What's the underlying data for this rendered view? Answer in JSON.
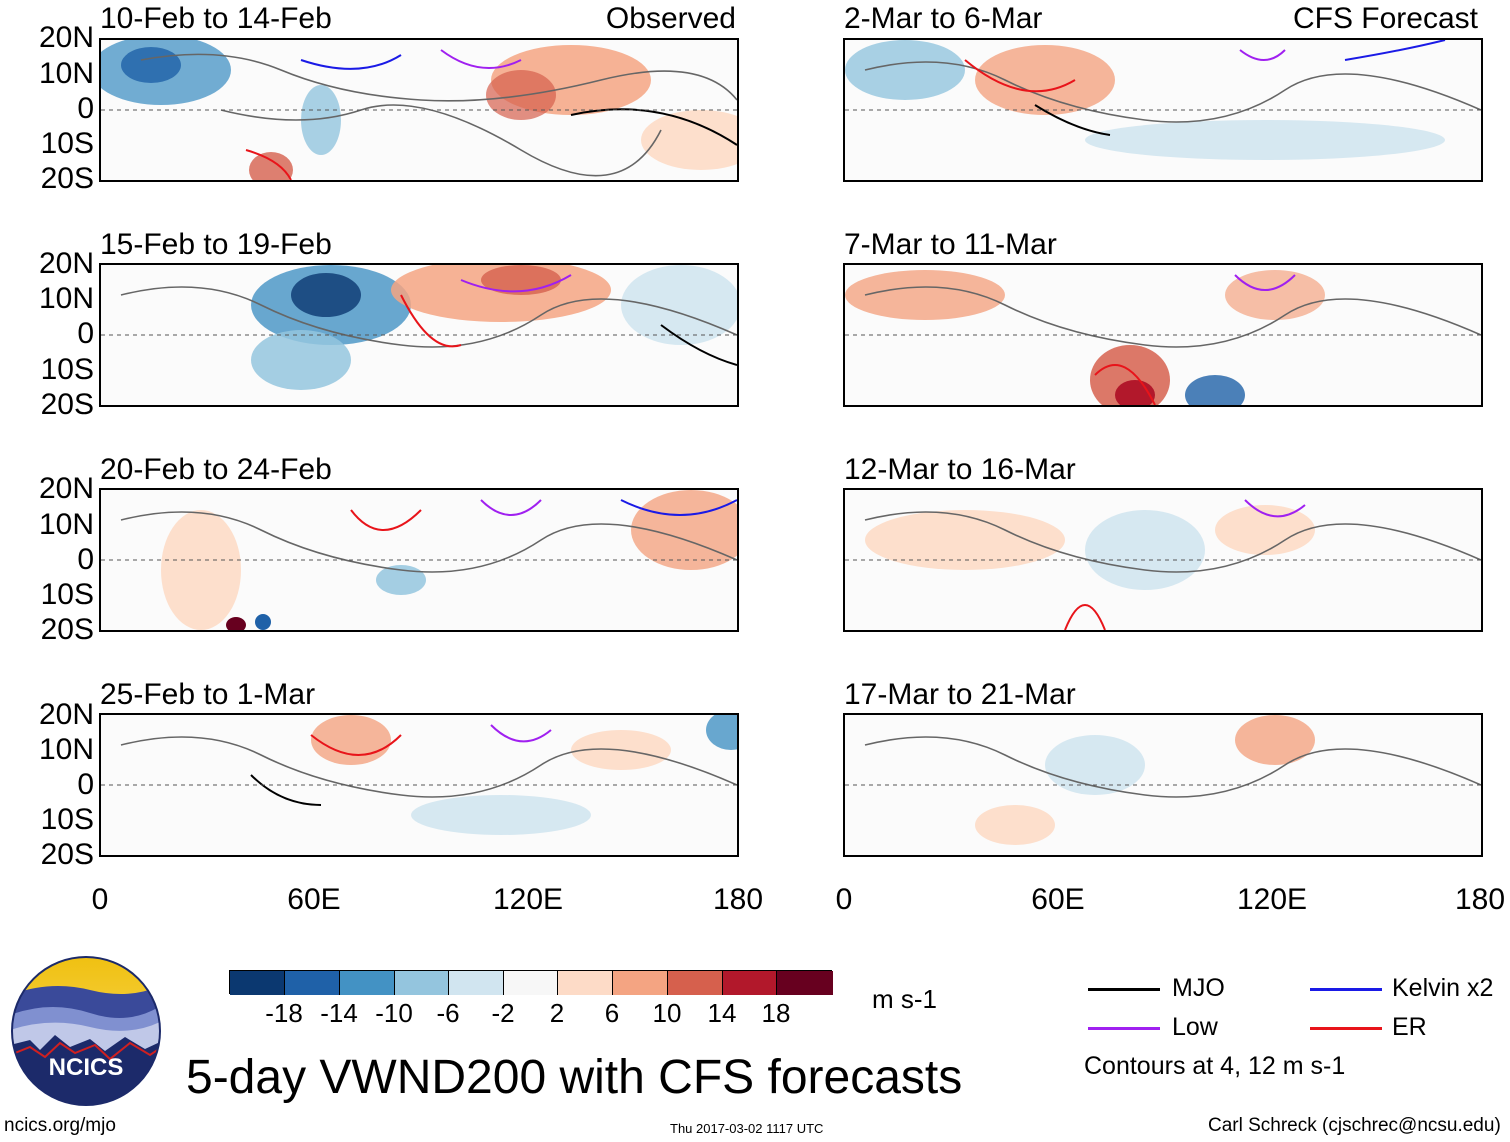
{
  "panels_left": {
    "tag": "Observed",
    "titles": [
      "10-Feb to 14-Feb",
      "15-Feb to 19-Feb",
      "20-Feb to 24-Feb",
      "25-Feb to 1-Mar"
    ]
  },
  "panels_right": {
    "tag": "CFS Forecast",
    "titles": [
      "2-Mar to 6-Mar",
      "7-Mar to 11-Mar",
      "12-Mar to 16-Mar",
      "17-Mar to 21-Mar"
    ]
  },
  "axes": {
    "lat_ticks": [
      "20N",
      "10N",
      "0",
      "10S",
      "20S"
    ],
    "lon_ticks": [
      "0",
      "60E",
      "120E",
      "180"
    ]
  },
  "colorbar": {
    "labels": [
      "-18",
      "-14",
      "-10",
      "-6",
      "-2",
      "2",
      "6",
      "10",
      "14",
      "18"
    ],
    "units": "m s-1",
    "colors": [
      "#0b3870",
      "#1f61a8",
      "#4392c4",
      "#94c5de",
      "#d1e5f0",
      "#f7f7f7",
      "#fddbc7",
      "#f4a482",
      "#d6604d",
      "#b2182b",
      "#67001f"
    ]
  },
  "legend": {
    "items": [
      {
        "label": "MJO",
        "color": "#000000"
      },
      {
        "label": "Kelvin x2",
        "color": "#1a1ae6"
      },
      {
        "label": "Low",
        "color": "#a020f0"
      },
      {
        "label": "ER",
        "color": "#e8141a"
      }
    ],
    "contours_note": "Contours at 4, 12 m s-1"
  },
  "footer": {
    "main_title": "5-day VWND200 with CFS forecasts",
    "logo_text": "NCICS",
    "url": "ncics.org/mjo",
    "timestamp": "Thu 2017-03-02 1117 UTC",
    "credit": "Carl Schreck (cjschrec@ncsu.edu)"
  }
}
